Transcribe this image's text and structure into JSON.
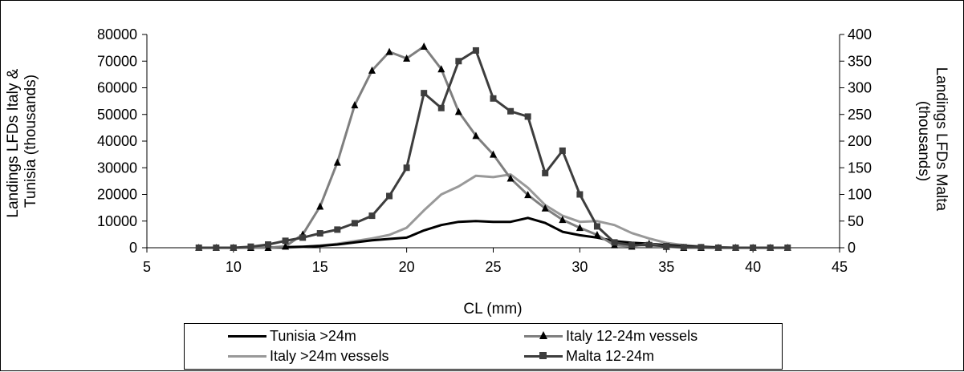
{
  "colors": {
    "tunisia": "#000000",
    "italy_12_24": "#7f7f7f",
    "italy_gt24": "#999999",
    "malta": "#3d3d3d",
    "triangle_marker": "#000000"
  },
  "chart_data": {
    "type": "line",
    "xlabel": "CL (mm)",
    "ylabel": "Landings LFDs Italy & Tunisia (thousands)",
    "ylabel_lines": [
      "Landings LFDs Italy &",
      "Tunisia (thousands)"
    ],
    "y2label": "Landings LFDs Malta (thousands)",
    "y2label_lines": [
      "Landings LFDs Malta",
      "(thousands)"
    ],
    "xlim": [
      5,
      45
    ],
    "ylim": [
      0,
      80000
    ],
    "y2lim": [
      0,
      400
    ],
    "x_ticks": [
      "5",
      "10",
      "15",
      "20",
      "25",
      "30",
      "35",
      "40",
      "45"
    ],
    "y_ticks": [
      "0",
      "10000",
      "20000",
      "30000",
      "40000",
      "50000",
      "60000",
      "70000",
      "80000"
    ],
    "y2_ticks": [
      "0",
      "50",
      "100",
      "150",
      "200",
      "250",
      "300",
      "350",
      "400"
    ],
    "grid": false,
    "legend_position": "bottom",
    "x": [
      8,
      9,
      10,
      11,
      12,
      13,
      14,
      15,
      16,
      17,
      18,
      19,
      20,
      21,
      22,
      23,
      24,
      25,
      26,
      27,
      28,
      29,
      30,
      31,
      32,
      33,
      34,
      35,
      36,
      37,
      38,
      39,
      40,
      41,
      42
    ],
    "series": [
      {
        "name": "Tunisia >24m",
        "axis": "left",
        "marker": "none",
        "values": [
          0,
          0,
          0,
          0,
          100,
          200,
          400,
          700,
          1200,
          2000,
          2800,
          3300,
          3800,
          6500,
          8500,
          9700,
          10000,
          9700,
          9700,
          11200,
          9300,
          6000,
          4700,
          3800,
          2500,
          1900,
          1500,
          1000,
          600,
          300,
          100,
          0,
          0,
          0,
          0
        ]
      },
      {
        "name": "Italy 12-24m vessels",
        "axis": "left",
        "marker": "triangle",
        "values": [
          0,
          0,
          0,
          0,
          0,
          500,
          5000,
          15500,
          32000,
          53500,
          66500,
          73500,
          71000,
          75500,
          67000,
          51000,
          42000,
          35000,
          26000,
          19800,
          14800,
          10500,
          7500,
          4800,
          1000,
          500,
          1500,
          400,
          0,
          0,
          0,
          0,
          0,
          0,
          0
        ]
      },
      {
        "name": "Italy >24m vessels",
        "axis": "left",
        "marker": "none",
        "values": [
          0,
          0,
          0,
          0,
          0,
          0,
          300,
          800,
          1500,
          2500,
          3500,
          4800,
          7500,
          14000,
          20000,
          23000,
          27000,
          26500,
          27500,
          22500,
          16000,
          12000,
          9700,
          10000,
          8500,
          5500,
          3500,
          1800,
          1000,
          500,
          200,
          0,
          0,
          0,
          0
        ]
      },
      {
        "name": "Malta 12-24m",
        "axis": "right",
        "marker": "square",
        "values": [
          0,
          0,
          0,
          2,
          6,
          13,
          19,
          27,
          34,
          46,
          60,
          97,
          150,
          290,
          262,
          350,
          370,
          280,
          256,
          246,
          140,
          182,
          100,
          40,
          10,
          5,
          5,
          3,
          1,
          1,
          0,
          0,
          0,
          0,
          0
        ]
      }
    ]
  }
}
